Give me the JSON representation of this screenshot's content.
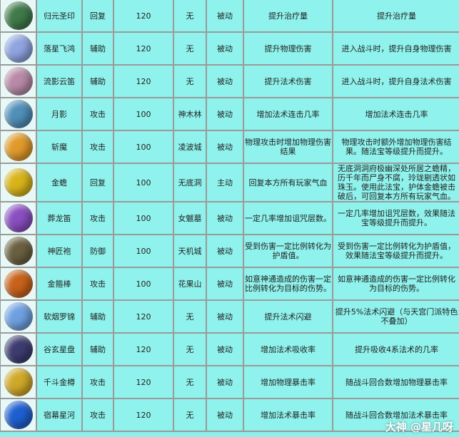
{
  "rows": [
    {
      "icon": "green-seal-icon",
      "icon_color": "#3f7a4a",
      "name": "归元圣印",
      "type": "回复",
      "level": "120",
      "location": "无",
      "mode": "被动",
      "effect": "提升治疗量",
      "description": "提升治疗量"
    },
    {
      "icon": "blue-wings-icon",
      "icon_color": "#8fa4e0",
      "name": "落星飞鸿",
      "type": "辅助",
      "level": "120",
      "location": "无",
      "mode": "被动",
      "effect": "提升物理伤害",
      "description": "进入战斗时，提升自身物理伤害"
    },
    {
      "icon": "flute-icon",
      "icon_color": "#b88aa8",
      "name": "流影云笛",
      "type": "辅助",
      "level": "120",
      "location": "无",
      "mode": "被动",
      "effect": "提升法术伤害",
      "description": "进入战斗时，提升自身法术伤害"
    },
    {
      "icon": "moon-orb-icon",
      "icon_color": "#4f8fb8",
      "name": "月影",
      "type": "攻击",
      "level": "100",
      "location": "神木林",
      "mode": "被动",
      "effect": "增加法术连击几率",
      "description": "增加法术连击几率"
    },
    {
      "icon": "flame-blade-icon",
      "icon_color": "#e09a2a",
      "name": "斩魔",
      "type": "攻击",
      "level": "100",
      "location": "凌波城",
      "mode": "被动",
      "effect": "物理攻击时增加物理伤害结果",
      "description": "物理攻击时额外增加物理伤害结果。随法宝等级提升而提升。"
    },
    {
      "icon": "golden-toad-icon",
      "icon_color": "#d8b41a",
      "name": "金蟾",
      "type": "回复",
      "level": "100",
      "location": "无底洞",
      "mode": "主动",
      "effect": "回复本方所有玩家气血",
      "description": "无底洞洞府极幽深处所居之蟾精，历千年而尸身不腐，玲珑剔透状如珠玉。使用此法宝，护体金蟾被击破后，可回复本方所有玩家气血。"
    },
    {
      "icon": "dragon-flute-icon",
      "icon_color": "#8a4ec0",
      "name": "葬龙笛",
      "type": "攻击",
      "level": "100",
      "location": "女魃墓",
      "mode": "被动",
      "effect": "一定几率增加诅咒层数。",
      "description": "一定几率增加诅咒层数，效果随法宝等级提升而提升。"
    },
    {
      "icon": "robe-icon",
      "icon_color": "#6a6040",
      "name": "神匠袍",
      "type": "防御",
      "level": "100",
      "location": "天机城",
      "mode": "被动",
      "effect": "受到伤害一定比例转化为护盾值。",
      "description": "受到伤害一定比例转化为护盾值，效果随法宝等级提升而提升。"
    },
    {
      "icon": "golden-staff-icon",
      "icon_color": "#c8621a",
      "name": "金箍棒",
      "type": "攻击",
      "level": "100",
      "location": "花果山",
      "mode": "被动",
      "effect": "如意神通造成的伤害一定比例转化为目标的伤势。",
      "description": "如意神通造成的伤害一定比例转化为目标的伤势。"
    },
    {
      "icon": "silk-robe-icon",
      "icon_color": "#6ea0e0",
      "name": "软烟罗锦",
      "type": "辅助",
      "level": "120",
      "location": "无",
      "mode": "被动",
      "effect": "提升法术闪避",
      "description": "提升5%法术闪避（与天宫门派特色不叠加）"
    },
    {
      "icon": "star-plate-icon",
      "icon_color": "#3c3c70",
      "name": "谷玄星盘",
      "type": "辅助",
      "level": "120",
      "location": "无",
      "mode": "被动",
      "effect": "增加法术吸收率",
      "description": "提升吸收4系法术的几率"
    },
    {
      "icon": "golden-cup-icon",
      "icon_color": "#d0a828",
      "name": "千斗金樽",
      "type": "攻击",
      "level": "120",
      "location": "无",
      "mode": "被动",
      "effect": "增加物理暴击率",
      "description": "随战斗回合数增加物理暴击率"
    },
    {
      "icon": "blue-orb-icon",
      "icon_color": "#1e5fd0",
      "name": "宿幕星河",
      "type": "攻击",
      "level": "120",
      "location": "无",
      "mode": "被动",
      "effect": "增加法术暴击率",
      "description": "随战斗回合数增加法术暴击率"
    }
  ],
  "watermark": "大神 @星几呀"
}
